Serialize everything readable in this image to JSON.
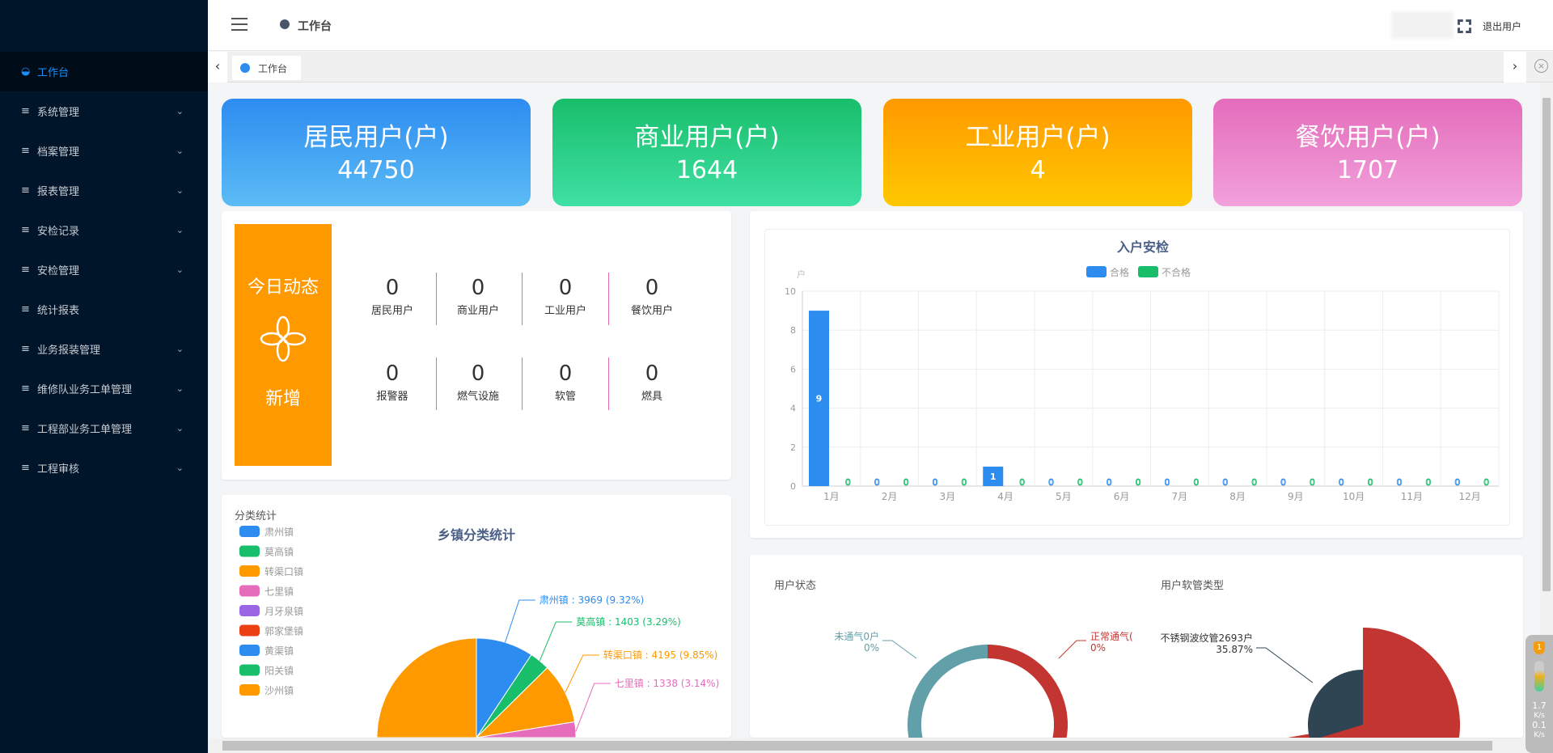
{
  "sidebar": {
    "items": [
      {
        "label": "工作台",
        "icon": "planet-icon",
        "active": true,
        "expandable": false
      },
      {
        "label": "系统管理",
        "icon": "menu-icon",
        "expandable": true
      },
      {
        "label": "档案管理",
        "icon": "menu-icon",
        "expandable": true
      },
      {
        "label": "报表管理",
        "icon": "menu-icon",
        "expandable": true
      },
      {
        "label": "安检记录",
        "icon": "menu-icon",
        "expandable": true
      },
      {
        "label": "安检管理",
        "icon": "menu-icon",
        "expandable": true
      },
      {
        "label": "统计报表",
        "icon": "menu-icon",
        "expandable": false
      },
      {
        "label": "业务报装管理",
        "icon": "menu-icon",
        "expandable": true
      },
      {
        "label": "维修队业务工单管理",
        "icon": "menu-icon",
        "expandable": true
      },
      {
        "label": "工程部业务工单管理",
        "icon": "menu-icon",
        "expandable": true
      },
      {
        "label": "工程审核",
        "icon": "menu-icon",
        "expandable": true
      }
    ],
    "accent": "#1890ff"
  },
  "header": {
    "breadcrumb": "工作台",
    "logout": "退出用户"
  },
  "tabs": [
    {
      "label": "工作台",
      "active": true
    }
  ],
  "cards": [
    {
      "title": "居民用户(户)",
      "value": "44750",
      "from": "#2d8cf0",
      "to": "#5cbcf5"
    },
    {
      "title": "商业用户(户)",
      "value": "1644",
      "from": "#19be6b",
      "to": "#3fe0a4"
    },
    {
      "title": "工业用户(户)",
      "value": "4",
      "from": "#ff9900",
      "to": "#ffc800"
    },
    {
      "title": "餐饮用户(户)",
      "value": "1707",
      "from": "#e46cbb",
      "to": "#f2a1dc"
    }
  ],
  "today": {
    "title": "今日动态",
    "subtitle": "新增",
    "stats": [
      {
        "value": "0",
        "label": "居民用户"
      },
      {
        "value": "0",
        "label": "商业用户"
      },
      {
        "value": "0",
        "label": "工业用户"
      },
      {
        "value": "0",
        "label": "餐饮用户"
      },
      {
        "value": "0",
        "label": "报警器"
      },
      {
        "value": "0",
        "label": "燃气设施"
      },
      {
        "value": "0",
        "label": "软管"
      },
      {
        "value": "0",
        "label": "燃具"
      }
    ]
  },
  "chart_data": [
    {
      "type": "bar",
      "title": "入户安检",
      "ylabel": "户",
      "ylim": [
        0,
        10
      ],
      "yticks": [
        0,
        2,
        4,
        6,
        8,
        10
      ],
      "grid": true,
      "legend": "top",
      "categories": [
        "1月",
        "2月",
        "3月",
        "4月",
        "5月",
        "6月",
        "7月",
        "8月",
        "9月",
        "10月",
        "11月",
        "12月"
      ],
      "series": [
        {
          "name": "合格",
          "color": "#2d8cf0",
          "values": [
            9,
            0,
            0,
            1,
            0,
            0,
            0,
            0,
            0,
            0,
            0,
            0
          ]
        },
        {
          "name": "不合格",
          "color": "#19be6b",
          "values": [
            0,
            0,
            0,
            0,
            0,
            0,
            0,
            0,
            0,
            0,
            0,
            0
          ]
        }
      ]
    },
    {
      "type": "pie",
      "title": "乡镇分类统计",
      "legend_title": "分类统计",
      "legend": "left",
      "legend_items": [
        {
          "name": "肃州镇",
          "color": "#2d8cf0"
        },
        {
          "name": "莫高镇",
          "color": "#19be6b"
        },
        {
          "name": "转渠口镇",
          "color": "#ff9900"
        },
        {
          "name": "七里镇",
          "color": "#e46cbb"
        },
        {
          "name": "月牙泉镇",
          "color": "#9a66e4"
        },
        {
          "name": "郭家堡镇",
          "color": "#ed3f14"
        },
        {
          "name": "黄渠镇",
          "color": "#2d8cf0"
        },
        {
          "name": "阳关镇",
          "color": "#19be6b"
        },
        {
          "name": "沙州镇",
          "color": "#ff9900"
        }
      ],
      "slices": [
        {
          "name": "肃州镇",
          "value": 3969,
          "percent": "9.32%",
          "color": "#2d8cf0",
          "label": "肃州镇 : 3969 (9.32%)"
        },
        {
          "name": "莫高镇",
          "value": 1403,
          "percent": "3.29%",
          "color": "#19be6b",
          "label": "莫高镇 : 1403 (3.29%)"
        },
        {
          "name": "转渠口镇",
          "value": 4195,
          "percent": "9.85%",
          "color": "#ff9900",
          "label": "转渠口镇 : 4195 (9.85%)"
        },
        {
          "name": "七里镇",
          "value": 1338,
          "percent": "3.14%",
          "color": "#e46cbb",
          "label": "七里镇 : 1338 (3.14%)"
        }
      ]
    },
    {
      "type": "pie",
      "title": "用户状态",
      "donut": true,
      "slices": [
        {
          "label": "正常通气(",
          "percent": "0%",
          "color": "#c23531"
        },
        {
          "label": "未通气0户",
          "percent": "0%",
          "color": "#61a0a8"
        }
      ]
    },
    {
      "type": "pie",
      "title": "用户软管类型",
      "rose": true,
      "slices": [
        {
          "label": "不锈钢波纹管2693户",
          "percent": "35.87%",
          "value": 2693,
          "color": "#2f4554"
        }
      ],
      "other_color": "#c23531"
    }
  ],
  "widget": {
    "badge": "1",
    "up": "1.7",
    "up_unit": "K/s",
    "down": "0.1",
    "down_unit": "K/s"
  }
}
